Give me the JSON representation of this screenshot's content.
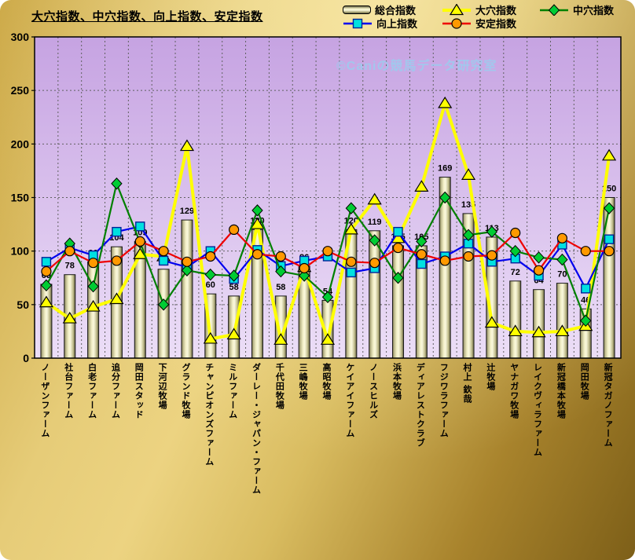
{
  "chart_data": {
    "type": "combo",
    "title": "大穴指数、中穴指数、向上指数、安定指数",
    "watermark": "©Caniの競馬データ研究室",
    "xlabel": "",
    "ylabel": "",
    "ylim": [
      0,
      300
    ],
    "yticks": [
      0,
      50,
      100,
      150,
      200,
      250,
      300
    ],
    "grid": true,
    "legend_position": "top-right",
    "colors": {
      "plot_top": "#c6a3e2",
      "plot_bottom": "#ecdef7",
      "grid": "#606060",
      "frame": "#000000",
      "bar_outline": "#1a1a1a",
      "watermark_blue": "#9ecaee"
    },
    "categories": [
      "ノーザンファーム",
      "社台ファーム",
      "白老ファーム",
      "追分ファーム",
      "岡田スタッド",
      "下河辺牧場",
      "グランド牧場",
      "チャンピオンズファーム",
      "ミルファーム",
      "ダーレー・ジャパン・ファーム",
      "千代田牧場",
      "三嶋牧場",
      "高昭牧場",
      "ケイアイファーム",
      "ノースヒルズ",
      "浜本牧場",
      "ディアレストクラブ",
      "フジワラファーム",
      "村上 欽哉",
      "辻牧場",
      "ヤナガワ牧場",
      "レイクヴィラファーム",
      "新冠橋本牧場",
      "岡田牧場",
      "新冠タガノファーム"
    ],
    "series": [
      {
        "name": "総合指数",
        "type": "bar",
        "color": "#efecc0",
        "marker": "bar",
        "values": [
          69,
          78,
          90,
          104,
          109,
          83,
          129,
          60,
          58,
          120,
          58,
          86,
          54,
          120,
          119,
          105,
          105,
          169,
          135,
          113,
          72,
          64,
          70,
          46,
          150
        ]
      },
      {
        "name": "大穴指数",
        "type": "line",
        "color": "#ffff00",
        "marker": "triangle",
        "marker_color": "#ffff00",
        "values": [
          52,
          37,
          48,
          55,
          97,
          95,
          198,
          18,
          22,
          125,
          17,
          85,
          17,
          120,
          148,
          112,
          160,
          238,
          171,
          33,
          25,
          24,
          25,
          30,
          189
        ]
      },
      {
        "name": "中穴指数",
        "type": "line",
        "color": "#008000",
        "marker": "diamond",
        "marker_color": "#00cc33",
        "values": [
          68,
          107,
          67,
          163,
          108,
          50,
          82,
          78,
          77,
          138,
          81,
          77,
          57,
          140,
          110,
          75,
          109,
          150,
          115,
          118,
          100,
          94,
          92,
          35,
          140
        ]
      },
      {
        "name": "向上指数",
        "type": "line",
        "color": "#0000ee",
        "marker": "square",
        "marker_color": "#00e0e0",
        "values": [
          90,
          103,
          96,
          118,
          123,
          91,
          85,
          100,
          74,
          101,
          86,
          91,
          95,
          80,
          84,
          118,
          88,
          95,
          107,
          90,
          93,
          77,
          106,
          65,
          111
        ]
      },
      {
        "name": "安定指数",
        "type": "line",
        "color": "#ee0000",
        "marker": "circle",
        "marker_color": "#ff9900",
        "values": [
          81,
          100,
          89,
          91,
          109,
          100,
          90,
          95,
          120,
          97,
          95,
          84,
          100,
          90,
          89,
          103,
          97,
          91,
          95,
          96,
          117,
          82,
          112,
          100,
          100
        ]
      }
    ]
  }
}
